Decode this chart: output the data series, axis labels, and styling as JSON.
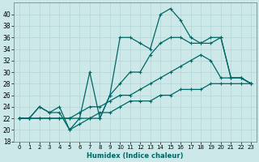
{
  "xlabel": "Humidex (Indice chaleur)",
  "ylabel": "",
  "background_color": "#cce8e8",
  "grid_color": "#b8d8d8",
  "line_color": "#006666",
  "xlim": [
    -0.5,
    23.5
  ],
  "ylim": [
    18,
    42
  ],
  "yticks": [
    18,
    20,
    22,
    24,
    26,
    28,
    30,
    32,
    34,
    36,
    38,
    40
  ],
  "xticks": [
    0,
    1,
    2,
    3,
    4,
    5,
    6,
    7,
    8,
    9,
    10,
    11,
    12,
    13,
    14,
    15,
    16,
    17,
    18,
    19,
    20,
    21,
    22,
    23
  ],
  "series": [
    [
      22,
      22,
      24,
      23,
      24,
      20,
      22,
      30,
      22,
      26,
      36,
      36,
      35,
      34,
      40,
      41,
      39,
      36,
      35,
      36,
      36,
      29,
      29,
      28
    ],
    [
      22,
      22,
      24,
      23,
      23,
      20,
      21,
      22,
      22,
      26,
      28,
      30,
      30,
      33,
      35,
      36,
      36,
      35,
      35,
      35,
      36,
      29,
      29,
      28
    ],
    [
      22,
      22,
      22,
      22,
      22,
      22,
      23,
      24,
      24,
      25,
      26,
      26,
      27,
      28,
      29,
      30,
      31,
      32,
      33,
      32,
      29,
      29,
      29,
      28
    ],
    [
      22,
      22,
      22,
      22,
      22,
      22,
      22,
      22,
      23,
      23,
      24,
      25,
      25,
      25,
      26,
      26,
      27,
      27,
      27,
      28,
      28,
      28,
      28,
      28
    ]
  ]
}
